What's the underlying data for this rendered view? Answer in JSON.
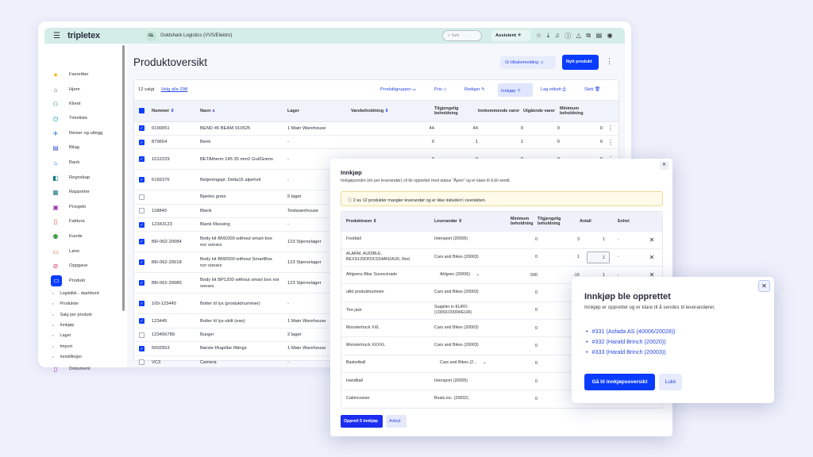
{
  "topbar": {
    "logo": "tripletex",
    "company_initials": "GL",
    "company": "Goldshark Logistics (VVS/Elektro)",
    "search_placeholder": "Søk",
    "assistant": "Assistent"
  },
  "sidebar": {
    "items": [
      {
        "label": "Favoritter",
        "icon": "★",
        "color": "#f5b400"
      },
      {
        "label": "Hjem",
        "icon": "⌂",
        "color": "#557"
      },
      {
        "label": "Klient",
        "icon": "⚇",
        "color": "#2a9a3a"
      },
      {
        "label": "Timeliste",
        "icon": "◷",
        "color": "#12a0b0"
      },
      {
        "label": "Reiser og utlegg",
        "icon": "✈",
        "color": "#2a6ce0"
      },
      {
        "label": "Bilag",
        "icon": "▤",
        "color": "#4060d0"
      },
      {
        "label": "Bank",
        "icon": "⌂",
        "color": "#2a6ce0"
      },
      {
        "label": "Regnskap",
        "icon": "◧",
        "color": "#0a7a8a"
      },
      {
        "label": "Rapporter",
        "icon": "▦",
        "color": "#2a7a8a"
      },
      {
        "label": "Prosjekt",
        "icon": "▣",
        "color": "#9a3ab0"
      },
      {
        "label": "Faktura",
        "icon": "▯",
        "color": "#e04a3a"
      },
      {
        "label": "Kunde",
        "icon": "⚉",
        "color": "#2a9a3a"
      },
      {
        "label": "Lønn",
        "icon": "▭",
        "color": "#e85a3a"
      },
      {
        "label": "Oppgave",
        "icon": "⊘",
        "color": "#e0305a"
      },
      {
        "label": "Produkt",
        "icon": "▭",
        "color": "#fff"
      }
    ],
    "subitems": [
      "Logistikk - dashbord",
      "Produkter",
      "Salg per produkt",
      "Innkjøp",
      "Lager",
      "Import",
      "Innstillinger"
    ],
    "dokument": "Dokument"
  },
  "main": {
    "title": "Produktoversikt",
    "feedback": "Gi tilbakemelding",
    "new_product": "Nytt produkt",
    "selected": "12 valgt",
    "select_all": "Velg alle 298",
    "actions": [
      "Produktgrupper",
      "Pris",
      "Rediger",
      "Innkjøp",
      "Lag etikett",
      "Slett"
    ],
    "headers": [
      "Nummer",
      "Navn",
      "Lager",
      "Varebeholdning",
      "Tilgjengelig beholdning",
      "Innkommende varer",
      "Utgående varer",
      "Minimum beholdning"
    ],
    "rows": [
      {
        "checked": true,
        "num": "0190051",
        "name": "BEND 45 BEAM 010525",
        "lager": "1 Main Warehouse",
        "v": [
          "44",
          "44",
          "0",
          "0",
          "0"
        ]
      },
      {
        "checked": true,
        "num": "879654",
        "name": "Benk",
        "lager": "-",
        "v": [
          "0",
          "1",
          "1",
          "0",
          "0"
        ]
      },
      {
        "checked": true,
        "num": "1012229",
        "name": "BETAtherm 145 35 mm2 Gul/Grønn",
        "lager": "-",
        "v": [
          "0",
          "0",
          "0",
          "0",
          "0"
        ]
      },
      {
        "checked": true,
        "num": "6166376",
        "name": "Betjeningspl. Delta15 alpehvit",
        "lager": "-",
        "v": []
      },
      {
        "checked": false,
        "num": "",
        "name": "Bjartes greie",
        "lager": "5 lager",
        "link": true,
        "v": []
      },
      {
        "checked": false,
        "num": "118840",
        "name": "Blank",
        "lager": "Testwarehouse",
        "v": []
      },
      {
        "checked": true,
        "num": "12343123",
        "name": "Blank Messing",
        "lager": "-",
        "v": []
      },
      {
        "checked": true,
        "num": "BR-062-20084",
        "name": "Body kit BM1000 without smart box nor sonars",
        "lager": "123 Stjernelager",
        "v": []
      },
      {
        "checked": true,
        "num": "BR-062-20018",
        "name": "Body kit BM2000 without SmartBox nor sonars",
        "lager": "123 Stjernelager",
        "v": []
      },
      {
        "checked": true,
        "num": "BR-062-20085",
        "name": "Body kit BP1200 without smart box nor sonars",
        "lager": "123 Stjernelager",
        "v": []
      },
      {
        "checked": true,
        "num": "100-123445",
        "name": "Bolter til lys (produktnummer)",
        "lager": "-",
        "v": []
      },
      {
        "checked": true,
        "num": "123445",
        "name": "Bolter til lys-skilt (ean)",
        "lager": "1 Main Warehouse",
        "v": []
      },
      {
        "checked": false,
        "num": "123456789",
        "name": "Burger",
        "lager": "2 lager",
        "link": true,
        "v": []
      },
      {
        "checked": true,
        "num": "5002553",
        "name": "Børste f/kapillar fittings",
        "lager": "1 Main Warehouse",
        "v": []
      },
      {
        "checked": false,
        "num": "VC3",
        "name": "Camera",
        "lager": "-",
        "v": []
      }
    ]
  },
  "purchase": {
    "title": "Innkjøp",
    "subtitle": "Innkjøpsordre (én per leverandør) vil bli opprettet med status \"Åpen\" og er klare til å bli sendt.",
    "warning": "2 av 12 produkter mangler leverandør og er ikke inkludert i oversikten.",
    "headers": [
      "Produktnavn",
      "Leverandør",
      "Minimum beholdning",
      "Tilgjengelig beholdning",
      "Antall",
      "Enhet"
    ],
    "rows": [
      {
        "name": "Football",
        "supplier": "Intersport (20005)",
        "min": "0",
        "avail": "3",
        "qty": "1",
        "unit": "-"
      },
      {
        "name": "ALARM, AUDIBLE, BEXS120DFDC024AN2A1R, Red",
        "supplier": "Cars and Bikes (20003)",
        "min": "0",
        "avail": "1",
        "qty": "1",
        "unit": "-",
        "editing": true
      },
      {
        "name": "Ahlgrens Bilar Sursockrade",
        "supplier": "Ahlgren (20006)",
        "min": "500",
        "avail": "-16",
        "qty": "1",
        "unit": "-",
        "dropdown": true
      },
      {
        "name": "ulikt produktnummer",
        "supplier": "Cars and Bikes (20003)",
        "min": "0"
      },
      {
        "name": "Tire jack",
        "supplier": "Supplier in EURO (10002/20004/EUR)",
        "min": "0"
      },
      {
        "name": "Monstertruck XXL",
        "supplier": "Cars and Bikes (20003)",
        "min": "0"
      },
      {
        "name": "Monstertruck XXXXL",
        "supplier": "Cars and Bikes (20003)",
        "min": "0"
      },
      {
        "name": "Basketball",
        "supplier": "Cars and Bikes (2...",
        "min": "0",
        "dropdown": true
      },
      {
        "name": "Handball",
        "supplier": "Intersport (20005)",
        "min": "0"
      },
      {
        "name": "Cabincruiser",
        "supplier": "Boats inc. (20002)",
        "min": "0"
      }
    ],
    "create": "Opprett 5 innkjøp",
    "cancel": "Avbryt"
  },
  "created": {
    "title": "Innkjøp ble opprettet",
    "subtitle": "Innkjøp er opprettet og er klare til å sendes til leverandører.",
    "orders": [
      "#331 (Asfada AS (40006/20028))",
      "#332 (Harald Brinch (20020))",
      "#333 (Harald Brinch (20003))"
    ],
    "go": "Gå til innkjøpsoversikt",
    "close": "Lukk"
  }
}
